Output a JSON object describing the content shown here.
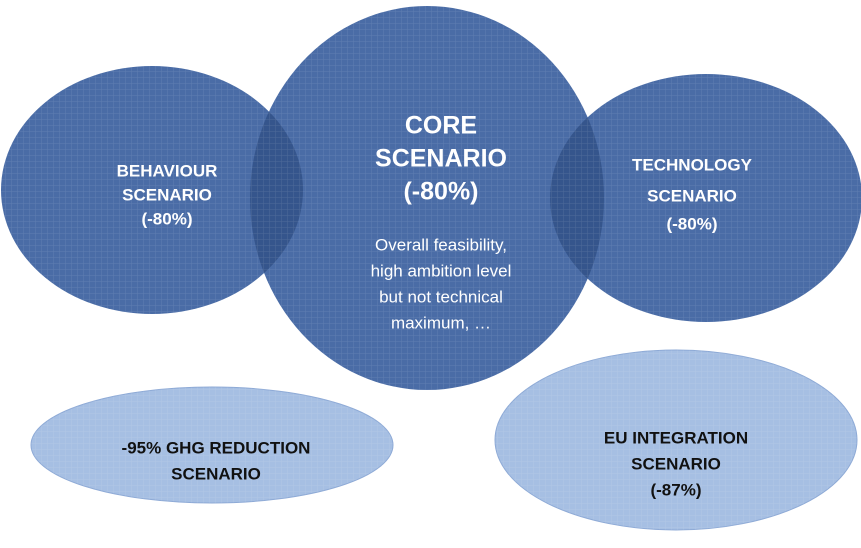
{
  "nodes": [
    {
      "title": [
        "BEHAVIOUR",
        "SCENARIO",
        "(-80%)"
      ]
    },
    {
      "title": [
        "CORE",
        "SCENARIO",
        "(-80%)"
      ],
      "description": [
        "Overall feasibility,",
        "high ambition level",
        "but not technical",
        "maximum, …"
      ]
    },
    {
      "title": [
        "TECHNOLOGY",
        "SCENARIO",
        "(-80%)"
      ]
    },
    {
      "title": [
        "-95% GHG REDUCTION",
        "SCENARIO"
      ]
    },
    {
      "title": [
        "EU INTEGRATION",
        "SCENARIO",
        "(-87%)"
      ]
    }
  ]
}
